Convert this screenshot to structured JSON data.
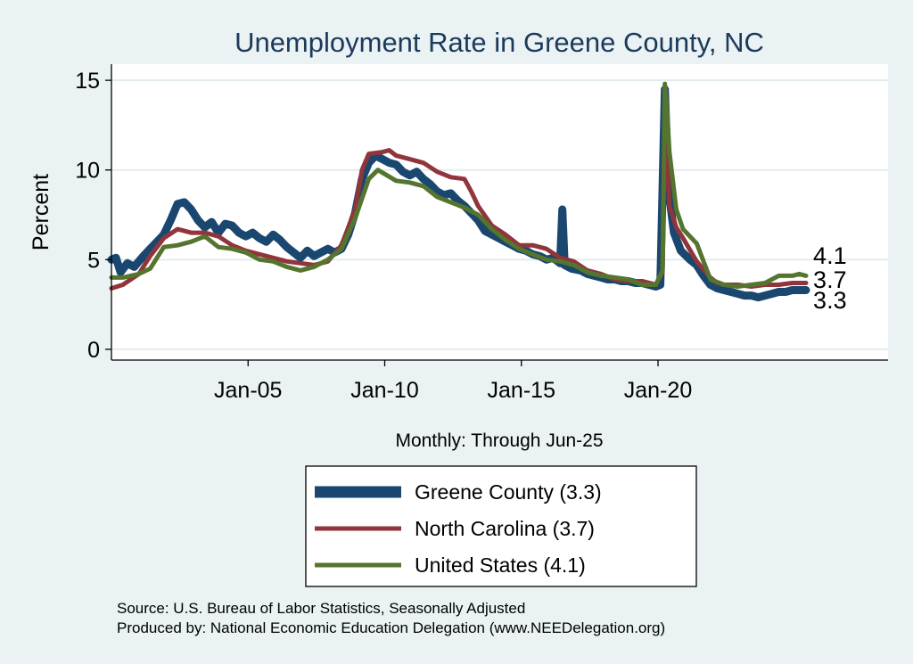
{
  "chart_data": {
    "type": "line",
    "title": "Unemployment Rate in Greene  County, NC",
    "ylabel": "Percent",
    "xlabel": "Monthly: Through Jun-25",
    "xlim": [
      "2000-01",
      "2028-06"
    ],
    "ylim": [
      -0.6,
      15.9
    ],
    "y_ticks": [
      0,
      5,
      10,
      15
    ],
    "x_ticks": [
      {
        "label": "Jan-05",
        "date": "2005-01"
      },
      {
        "label": "Jan-10",
        "date": "2010-01"
      },
      {
        "label": "Jan-15",
        "date": "2015-01"
      },
      {
        "label": "Jan-20",
        "date": "2020-01"
      }
    ],
    "grid": true,
    "legend_position": "bottom-center",
    "series": [
      {
        "name": "Greene  County (3.3)",
        "end_label": "3.3",
        "color": "#1a476f",
        "points": [
          [
            "2000-01",
            5.0
          ],
          [
            "2000-03",
            5.1
          ],
          [
            "2000-05",
            4.3
          ],
          [
            "2000-08",
            4.8
          ],
          [
            "2000-11",
            4.6
          ],
          [
            "2001-03",
            5.2
          ],
          [
            "2001-06",
            5.6
          ],
          [
            "2001-09",
            6.0
          ],
          [
            "2001-12",
            6.4
          ],
          [
            "2002-03",
            7.2
          ],
          [
            "2002-06",
            8.1
          ],
          [
            "2002-09",
            8.2
          ],
          [
            "2002-12",
            7.8
          ],
          [
            "2003-03",
            7.2
          ],
          [
            "2003-06",
            6.8
          ],
          [
            "2003-09",
            7.1
          ],
          [
            "2003-12",
            6.5
          ],
          [
            "2004-03",
            7.0
          ],
          [
            "2004-06",
            6.9
          ],
          [
            "2004-09",
            6.5
          ],
          [
            "2004-12",
            6.3
          ],
          [
            "2005-03",
            6.5
          ],
          [
            "2005-06",
            6.2
          ],
          [
            "2005-09",
            6.0
          ],
          [
            "2005-12",
            6.4
          ],
          [
            "2006-03",
            6.1
          ],
          [
            "2006-06",
            5.7
          ],
          [
            "2006-09",
            5.4
          ],
          [
            "2006-12",
            5.1
          ],
          [
            "2007-03",
            5.5
          ],
          [
            "2007-06",
            5.2
          ],
          [
            "2007-09",
            5.4
          ],
          [
            "2007-12",
            5.6
          ],
          [
            "2008-03",
            5.4
          ],
          [
            "2008-06",
            5.6
          ],
          [
            "2008-09",
            6.4
          ],
          [
            "2008-12",
            7.6
          ],
          [
            "2009-03",
            9.5
          ],
          [
            "2009-06",
            10.4
          ],
          [
            "2009-09",
            10.8
          ],
          [
            "2009-12",
            10.6
          ],
          [
            "2010-03",
            10.4
          ],
          [
            "2010-06",
            10.3
          ],
          [
            "2010-09",
            9.9
          ],
          [
            "2010-12",
            9.7
          ],
          [
            "2011-03",
            9.9
          ],
          [
            "2011-06",
            9.5
          ],
          [
            "2011-09",
            9.2
          ],
          [
            "2011-12",
            8.8
          ],
          [
            "2012-03",
            8.6
          ],
          [
            "2012-06",
            8.7
          ],
          [
            "2012-09",
            8.3
          ],
          [
            "2012-12",
            8.0
          ],
          [
            "2013-03",
            7.6
          ],
          [
            "2013-06",
            7.2
          ],
          [
            "2013-09",
            6.6
          ],
          [
            "2013-12",
            6.4
          ],
          [
            "2014-03",
            6.2
          ],
          [
            "2014-06",
            6.0
          ],
          [
            "2014-09",
            5.8
          ],
          [
            "2014-12",
            5.6
          ],
          [
            "2015-03",
            5.5
          ],
          [
            "2015-06",
            5.3
          ],
          [
            "2015-09",
            5.2
          ],
          [
            "2015-12",
            5.0
          ],
          [
            "2016-03",
            5.1
          ],
          [
            "2016-06",
            4.8
          ],
          [
            "2016-07",
            7.8
          ],
          [
            "2016-08",
            4.7
          ],
          [
            "2016-11",
            4.5
          ],
          [
            "2017-03",
            4.4
          ],
          [
            "2017-06",
            4.2
          ],
          [
            "2017-09",
            4.1
          ],
          [
            "2017-12",
            4.0
          ],
          [
            "2018-03",
            3.9
          ],
          [
            "2018-06",
            3.9
          ],
          [
            "2018-09",
            3.8
          ],
          [
            "2018-12",
            3.8
          ],
          [
            "2019-03",
            3.7
          ],
          [
            "2019-06",
            3.7
          ],
          [
            "2019-09",
            3.6
          ],
          [
            "2019-12",
            3.5
          ],
          [
            "2020-02",
            3.6
          ],
          [
            "2020-04",
            14.5
          ],
          [
            "2020-05",
            11.0
          ],
          [
            "2020-06",
            8.5
          ],
          [
            "2020-08",
            6.5
          ],
          [
            "2020-11",
            5.5
          ],
          [
            "2021-03",
            5.0
          ],
          [
            "2021-06",
            4.7
          ],
          [
            "2021-09",
            4.1
          ],
          [
            "2021-12",
            3.6
          ],
          [
            "2022-03",
            3.4
          ],
          [
            "2022-06",
            3.3
          ],
          [
            "2022-09",
            3.2
          ],
          [
            "2022-12",
            3.1
          ],
          [
            "2023-03",
            3.0
          ],
          [
            "2023-06",
            3.0
          ],
          [
            "2023-09",
            2.9
          ],
          [
            "2023-12",
            3.0
          ],
          [
            "2024-03",
            3.1
          ],
          [
            "2024-06",
            3.2
          ],
          [
            "2024-09",
            3.2
          ],
          [
            "2024-12",
            3.3
          ],
          [
            "2025-03",
            3.3
          ],
          [
            "2025-06",
            3.3
          ]
        ]
      },
      {
        "name": "North Carolina (3.7)",
        "end_label": "3.7",
        "color": "#90353b",
        "points": [
          [
            "2000-01",
            3.4
          ],
          [
            "2000-06",
            3.6
          ],
          [
            "2001-01",
            4.2
          ],
          [
            "2001-06",
            5.2
          ],
          [
            "2001-12",
            6.2
          ],
          [
            "2002-06",
            6.7
          ],
          [
            "2002-12",
            6.5
          ],
          [
            "2003-06",
            6.5
          ],
          [
            "2003-12",
            6.3
          ],
          [
            "2004-06",
            5.8
          ],
          [
            "2004-12",
            5.5
          ],
          [
            "2005-06",
            5.3
          ],
          [
            "2005-12",
            5.1
          ],
          [
            "2006-06",
            4.9
          ],
          [
            "2006-12",
            4.8
          ],
          [
            "2007-06",
            4.7
          ],
          [
            "2007-12",
            4.9
          ],
          [
            "2008-06",
            5.8
          ],
          [
            "2008-12",
            7.8
          ],
          [
            "2009-03",
            10.0
          ],
          [
            "2009-06",
            10.9
          ],
          [
            "2009-12",
            11.0
          ],
          [
            "2010-03",
            11.1
          ],
          [
            "2010-06",
            10.8
          ],
          [
            "2010-12",
            10.6
          ],
          [
            "2011-06",
            10.4
          ],
          [
            "2011-12",
            9.9
          ],
          [
            "2012-06",
            9.6
          ],
          [
            "2012-12",
            9.5
          ],
          [
            "2013-03",
            8.8
          ],
          [
            "2013-06",
            8.0
          ],
          [
            "2013-12",
            6.9
          ],
          [
            "2014-06",
            6.4
          ],
          [
            "2014-12",
            5.8
          ],
          [
            "2015-06",
            5.8
          ],
          [
            "2015-12",
            5.6
          ],
          [
            "2016-06",
            5.1
          ],
          [
            "2016-12",
            4.9
          ],
          [
            "2017-06",
            4.4
          ],
          [
            "2017-12",
            4.2
          ],
          [
            "2018-06",
            3.9
          ],
          [
            "2018-12",
            3.8
          ],
          [
            "2019-06",
            3.8
          ],
          [
            "2019-12",
            3.6
          ],
          [
            "2020-03",
            4.3
          ],
          [
            "2020-04",
            13.5
          ],
          [
            "2020-05",
            10.5
          ],
          [
            "2020-06",
            8.0
          ],
          [
            "2020-09",
            6.8
          ],
          [
            "2020-12",
            6.2
          ],
          [
            "2021-06",
            4.9
          ],
          [
            "2021-12",
            4.0
          ],
          [
            "2022-03",
            3.7
          ],
          [
            "2022-06",
            3.6
          ],
          [
            "2022-12",
            3.6
          ],
          [
            "2023-06",
            3.5
          ],
          [
            "2023-12",
            3.6
          ],
          [
            "2024-06",
            3.6
          ],
          [
            "2024-12",
            3.7
          ],
          [
            "2025-06",
            3.7
          ]
        ]
      },
      {
        "name": "United States (4.1)",
        "end_label": "4.1",
        "color": "#55752f",
        "points": [
          [
            "2000-01",
            4.0
          ],
          [
            "2000-06",
            4.0
          ],
          [
            "2001-01",
            4.2
          ],
          [
            "2001-06",
            4.5
          ],
          [
            "2001-12",
            5.7
          ],
          [
            "2002-06",
            5.8
          ],
          [
            "2002-12",
            6.0
          ],
          [
            "2003-06",
            6.3
          ],
          [
            "2003-12",
            5.7
          ],
          [
            "2004-06",
            5.6
          ],
          [
            "2004-12",
            5.4
          ],
          [
            "2005-06",
            5.0
          ],
          [
            "2005-12",
            4.9
          ],
          [
            "2006-06",
            4.6
          ],
          [
            "2006-12",
            4.4
          ],
          [
            "2007-06",
            4.6
          ],
          [
            "2007-12",
            5.0
          ],
          [
            "2008-06",
            5.6
          ],
          [
            "2008-12",
            7.3
          ],
          [
            "2009-06",
            9.5
          ],
          [
            "2009-10",
            10.0
          ],
          [
            "2010-06",
            9.4
          ],
          [
            "2010-12",
            9.3
          ],
          [
            "2011-06",
            9.1
          ],
          [
            "2011-12",
            8.5
          ],
          [
            "2012-06",
            8.2
          ],
          [
            "2012-12",
            7.9
          ],
          [
            "2013-06",
            7.5
          ],
          [
            "2013-12",
            6.7
          ],
          [
            "2014-06",
            6.1
          ],
          [
            "2014-12",
            5.6
          ],
          [
            "2015-06",
            5.3
          ],
          [
            "2015-12",
            5.0
          ],
          [
            "2016-06",
            4.9
          ],
          [
            "2016-12",
            4.7
          ],
          [
            "2017-06",
            4.3
          ],
          [
            "2017-12",
            4.1
          ],
          [
            "2018-06",
            4.0
          ],
          [
            "2018-12",
            3.9
          ],
          [
            "2019-06",
            3.6
          ],
          [
            "2019-12",
            3.6
          ],
          [
            "2020-03",
            4.4
          ],
          [
            "2020-04",
            14.8
          ],
          [
            "2020-05",
            13.2
          ],
          [
            "2020-06",
            11.0
          ],
          [
            "2020-09",
            7.8
          ],
          [
            "2020-12",
            6.7
          ],
          [
            "2021-06",
            5.9
          ],
          [
            "2021-12",
            3.9
          ],
          [
            "2022-06",
            3.6
          ],
          [
            "2022-12",
            3.5
          ],
          [
            "2023-06",
            3.6
          ],
          [
            "2023-12",
            3.7
          ],
          [
            "2024-06",
            4.1
          ],
          [
            "2024-12",
            4.1
          ],
          [
            "2025-03",
            4.2
          ],
          [
            "2025-06",
            4.1
          ]
        ]
      }
    ]
  },
  "footer": {
    "source": "Source: U.S. Bureau of Labor Statistics, Seasonally Adjusted",
    "produced_by": "Produced by: National Economic Education Delegation (www.NEEDelegation.org)"
  }
}
